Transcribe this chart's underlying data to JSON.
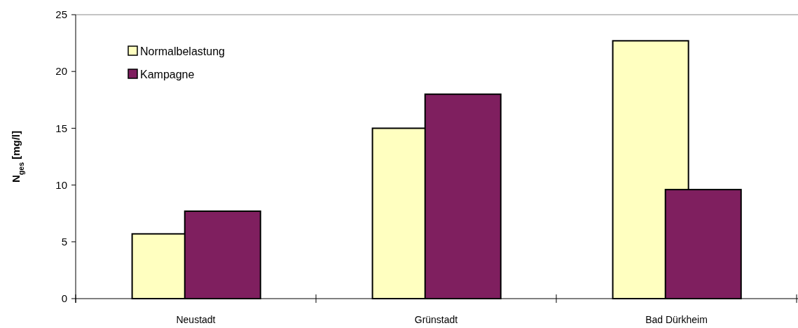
{
  "chart_data": {
    "type": "bar",
    "ylabel": "N$_{ges}$ [mg/l]",
    "categories": [
      "Neustadt",
      "Grünstadt",
      "Bad Dürkheim"
    ],
    "series": [
      {
        "name": "Normalbelastung",
        "color": "#ffffc0",
        "values": [
          5.7,
          15.0,
          22.7
        ]
      },
      {
        "name": "Kampagne",
        "color": "#7f1f5f",
        "values": [
          7.7,
          18.0,
          9.6
        ]
      }
    ],
    "ylim": [
      0,
      25
    ],
    "yticks": [
      0,
      5,
      10,
      15,
      20,
      25
    ],
    "grid": false,
    "legend": "top left"
  }
}
